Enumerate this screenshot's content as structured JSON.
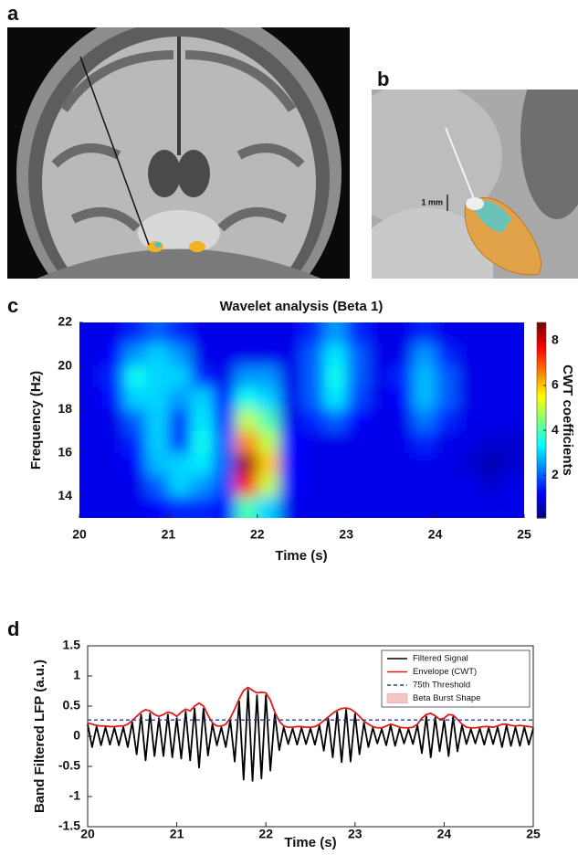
{
  "panel_labels": [
    "a",
    "b",
    "c",
    "d"
  ],
  "scale_bar_label": "1 mm",
  "chart_data": [
    {
      "type": "heatmap",
      "title": "Wavelet analysis (Beta 1)",
      "x_label": "Time (s)",
      "y_label": "Frequency (Hz)",
      "colorbar_label": "CWT coefficients",
      "colormap": "jet",
      "x": [
        20.125,
        20.375,
        20.625,
        20.875,
        21.125,
        21.375,
        21.625,
        21.875,
        22.125,
        22.375,
        22.625,
        22.875,
        23.125,
        23.375,
        23.625,
        23.875,
        24.125,
        24.375,
        24.625,
        24.875
      ],
      "y": [
        21.5,
        20.5,
        19.5,
        18.5,
        17.5,
        16.5,
        15.5,
        14.5,
        13.5
      ],
      "z": [
        [
          1,
          1,
          1.5,
          2,
          1.5,
          1,
          1,
          1,
          1,
          1,
          1.5,
          2.5,
          1.5,
          1,
          1,
          1.5,
          1,
          1,
          1,
          1
        ],
        [
          1,
          1.2,
          2.5,
          3,
          2.5,
          1,
          1,
          1,
          1,
          1,
          2,
          3.2,
          2,
          1,
          1,
          2.5,
          1.5,
          1,
          1,
          1
        ],
        [
          1,
          1.5,
          3.5,
          3,
          3,
          1.5,
          1,
          2.5,
          2.5,
          1,
          2,
          3.5,
          2,
          1,
          1.5,
          2.8,
          2,
          1,
          1,
          1
        ],
        [
          1,
          1.3,
          3,
          3,
          2.5,
          3,
          1.2,
          3.5,
          3,
          1,
          2,
          3.2,
          1.8,
          1,
          1.2,
          2.8,
          2,
          1,
          1,
          1
        ],
        [
          1,
          1,
          2,
          3,
          1.5,
          3.2,
          1.5,
          5,
          4,
          1,
          1.5,
          2,
          1.2,
          1,
          1,
          2.2,
          1.5,
          1,
          1,
          1
        ],
        [
          1,
          1,
          1.5,
          3,
          1.5,
          3.5,
          2,
          6.5,
          5,
          1.2,
          1,
          1,
          1,
          1,
          1,
          1.5,
          1,
          1,
          0.8,
          0.8
        ],
        [
          1,
          1,
          1.2,
          2.8,
          3,
          3.2,
          2,
          8.5,
          6,
          1.2,
          1,
          1,
          1,
          1,
          1,
          1,
          1,
          0.8,
          0.5,
          0.8
        ],
        [
          1,
          1,
          1,
          2,
          3,
          2.5,
          1.8,
          7.5,
          5,
          1.2,
          1,
          1,
          1,
          1,
          1,
          1,
          1,
          1,
          0.8,
          1
        ],
        [
          1,
          1,
          1,
          1.2,
          1.5,
          1.5,
          1.3,
          4,
          3,
          1,
          1,
          1,
          1,
          1,
          1,
          1,
          1,
          1,
          1,
          1
        ]
      ],
      "xlim": [
        20,
        25
      ],
      "xticks": [
        20,
        21,
        22,
        23,
        24,
        25
      ],
      "ylim": [
        13,
        22
      ],
      "yticks": [
        14,
        16,
        18,
        20,
        22
      ],
      "clim": [
        0.1,
        8.8
      ],
      "cticks": [
        2,
        4,
        6,
        8
      ]
    },
    {
      "type": "line",
      "x_label": "Time (s)",
      "y_label": "Band Filtered LFP (a.u.)",
      "x": [
        20,
        20.05,
        20.1,
        20.15,
        20.2,
        20.25,
        20.3,
        20.35,
        20.4,
        20.45,
        20.5,
        20.55,
        20.6,
        20.65,
        20.7,
        20.75,
        20.8,
        20.85,
        20.9,
        20.95,
        21,
        21.05,
        21.1,
        21.15,
        21.2,
        21.25,
        21.3,
        21.35,
        21.4,
        21.45,
        21.5,
        21.55,
        21.6,
        21.65,
        21.7,
        21.75,
        21.8,
        21.85,
        21.9,
        21.95,
        22,
        22.05,
        22.1,
        22.15,
        22.2,
        22.25,
        22.3,
        22.35,
        22.4,
        22.45,
        22.5,
        22.55,
        22.6,
        22.65,
        22.7,
        22.75,
        22.8,
        22.85,
        22.9,
        22.95,
        23,
        23.05,
        23.1,
        23.15,
        23.2,
        23.25,
        23.3,
        23.35,
        23.4,
        23.45,
        23.5,
        23.55,
        23.6,
        23.65,
        23.7,
        23.75,
        23.8,
        23.85,
        23.9,
        23.95,
        24,
        24.05,
        24.1,
        24.15,
        24.2,
        24.25,
        24.3,
        24.35,
        24.4,
        24.45,
        24.5,
        24.55,
        24.6,
        24.65,
        24.7,
        24.75,
        24.8,
        24.85,
        24.9,
        24.95,
        25
      ],
      "series": [
        {
          "name": "Filtered Signal",
          "color": "#000000",
          "values": [
            0.2,
            -0.18,
            0.16,
            -0.15,
            0.15,
            -0.14,
            0.14,
            -0.15,
            0.15,
            -0.18,
            0.23,
            -0.3,
            0.36,
            -0.4,
            0.38,
            -0.33,
            0.3,
            -0.33,
            0.36,
            -0.35,
            0.3,
            -0.37,
            0.41,
            -0.4,
            0.46,
            -0.52,
            0.46,
            -0.32,
            0.2,
            -0.15,
            0.15,
            -0.18,
            0.27,
            -0.42,
            0.58,
            -0.72,
            0.77,
            -0.74,
            0.68,
            -0.7,
            0.68,
            -0.57,
            0.37,
            -0.23,
            0.15,
            -0.13,
            0.13,
            -0.14,
            0.14,
            -0.13,
            0.13,
            -0.14,
            0.18,
            -0.24,
            0.29,
            -0.35,
            0.4,
            -0.43,
            0.44,
            -0.42,
            0.37,
            -0.3,
            0.22,
            -0.18,
            0.14,
            -0.12,
            0.12,
            -0.15,
            0.18,
            -0.16,
            0.13,
            -0.12,
            0.12,
            -0.13,
            0.18,
            -0.28,
            0.33,
            -0.35,
            0.31,
            -0.25,
            0.27,
            -0.33,
            0.32,
            -0.25,
            0.18,
            -0.13,
            0.12,
            -0.12,
            0.13,
            -0.14,
            0.14,
            -0.13,
            0.15,
            -0.18,
            0.18,
            -0.16,
            0.15,
            -0.16,
            0.15,
            -0.14,
            0.13
          ]
        },
        {
          "name": "Envelope (CWT)",
          "color": "#e01b1b",
          "values": [
            0.22,
            0.2,
            0.18,
            0.17,
            0.17,
            0.16,
            0.16,
            0.17,
            0.17,
            0.2,
            0.26,
            0.33,
            0.4,
            0.44,
            0.42,
            0.36,
            0.33,
            0.36,
            0.4,
            0.38,
            0.33,
            0.4,
            0.45,
            0.42,
            0.5,
            0.55,
            0.5,
            0.35,
            0.22,
            0.17,
            0.17,
            0.2,
            0.3,
            0.45,
            0.62,
            0.76,
            0.81,
            0.76,
            0.72,
            0.73,
            0.72,
            0.6,
            0.4,
            0.25,
            0.17,
            0.15,
            0.15,
            0.16,
            0.16,
            0.15,
            0.15,
            0.16,
            0.2,
            0.26,
            0.32,
            0.38,
            0.43,
            0.46,
            0.47,
            0.45,
            0.4,
            0.33,
            0.25,
            0.2,
            0.16,
            0.14,
            0.14,
            0.17,
            0.2,
            0.18,
            0.15,
            0.14,
            0.14,
            0.15,
            0.2,
            0.3,
            0.36,
            0.38,
            0.34,
            0.28,
            0.3,
            0.36,
            0.35,
            0.28,
            0.2,
            0.15,
            0.14,
            0.14,
            0.15,
            0.16,
            0.16,
            0.15,
            0.17,
            0.2,
            0.2,
            0.18,
            0.17,
            0.18,
            0.17,
            0.16,
            0.15
          ]
        },
        {
          "name": "75th Threshold",
          "color": "#2b3a9e",
          "dashed": true,
          "value": 0.27
        },
        {
          "name": "Beta Burst Shape",
          "color": "#f6c4c4",
          "patch": true
        }
      ],
      "xlim": [
        20,
        25
      ],
      "xticks": [
        20,
        21,
        22,
        23,
        24,
        25
      ],
      "ylim": [
        -1.5,
        1.5
      ],
      "yticks": [
        -1.5,
        -1,
        -0.5,
        0,
        0.5,
        1,
        1.5
      ],
      "legend": "upper right"
    }
  ]
}
